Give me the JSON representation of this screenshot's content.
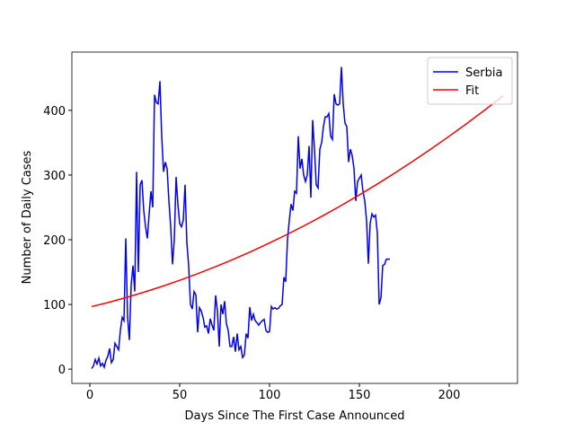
{
  "chart_data": {
    "type": "line",
    "x_label": "Days Since The First Case Announced",
    "y_label": "Number of Daily Cases",
    "xlim": [
      -10,
      238
    ],
    "ylim": [
      -22,
      490
    ],
    "xticks": [
      0,
      50,
      100,
      150,
      200
    ],
    "yticks": [
      0,
      100,
      200,
      300,
      400
    ],
    "legend": "upper right",
    "series": [
      {
        "name": "Serbia",
        "color": "#0000ff",
        "x": [
          1,
          2,
          3,
          4,
          5,
          6,
          7,
          8,
          9,
          10,
          11,
          12,
          13,
          14,
          15,
          16,
          17,
          18,
          19,
          20,
          21,
          22,
          23,
          24,
          25,
          26,
          27,
          28,
          29,
          30,
          31,
          32,
          33,
          34,
          35,
          36,
          37,
          38,
          39,
          40,
          41,
          42,
          43,
          44,
          45,
          46,
          47,
          48,
          49,
          50,
          51,
          52,
          53,
          54,
          55,
          56,
          57,
          58,
          59,
          60,
          61,
          62,
          63,
          64,
          65,
          66,
          67,
          68,
          69,
          70,
          71,
          72,
          73,
          74,
          75,
          76,
          77,
          78,
          79,
          80,
          81,
          82,
          83,
          84,
          85,
          86,
          87,
          88,
          89,
          90,
          91,
          92,
          93,
          94,
          95,
          96,
          97,
          98,
          99,
          100,
          101,
          102,
          103,
          104,
          105,
          106,
          107,
          108,
          109,
          110,
          111,
          112,
          113,
          114,
          115,
          116,
          117,
          118,
          119,
          120,
          121,
          122,
          123,
          124,
          125,
          126,
          127,
          128,
          129,
          130,
          131,
          132,
          133,
          134,
          135,
          136,
          137,
          138,
          139,
          140,
          141,
          142,
          143,
          144,
          145,
          146,
          147,
          148,
          149,
          150,
          151,
          152,
          153,
          154,
          155,
          156,
          157,
          158,
          159,
          160,
          161,
          162,
          163,
          164,
          165,
          166,
          167
        ],
        "values": [
          1,
          5,
          15,
          8,
          17,
          5,
          9,
          3,
          14,
          20,
          32,
          10,
          15,
          40,
          35,
          30,
          60,
          80,
          75,
          202,
          80,
          45,
          130,
          160,
          120,
          305,
          150,
          285,
          292,
          245,
          220,
          202,
          240,
          275,
          250,
          424,
          412,
          410,
          445,
          360,
          305,
          320,
          310,
          260,
          220,
          162,
          200,
          297,
          255,
          225,
          220,
          230,
          285,
          195,
          160,
          100,
          93,
          120,
          115,
          57,
          95,
          90,
          80,
          65,
          67,
          55,
          78,
          68,
          60,
          114,
          90,
          35,
          100,
          85,
          105,
          70,
          60,
          35,
          35,
          50,
          27,
          55,
          30,
          35,
          18,
          22,
          55,
          48,
          96,
          75,
          85,
          75,
          72,
          68,
          72,
          75,
          77,
          60,
          57,
          58,
          97,
          93,
          95,
          93,
          94,
          98,
          100,
          142,
          135,
          200,
          230,
          255,
          245,
          275,
          272,
          360,
          310,
          325,
          300,
          290,
          300,
          345,
          265,
          385,
          340,
          285,
          280,
          340,
          350,
          375,
          390,
          390,
          395,
          360,
          355,
          425,
          410,
          408,
          410,
          467,
          410,
          380,
          375,
          320,
          340,
          330,
          310,
          260,
          290,
          295,
          300,
          275,
          260,
          230,
          163,
          225,
          240,
          235,
          238,
          210,
          100,
          110,
          160,
          162,
          170,
          170,
          170
        ]
      },
      {
        "name": "Fit",
        "color": "#ff0000",
        "x": [
          1,
          10,
          20,
          30,
          40,
          50,
          60,
          70,
          80,
          90,
          100,
          110,
          120,
          130,
          140,
          150,
          160,
          170,
          180,
          190,
          200,
          210,
          220,
          230
        ],
        "values": [
          96.7,
          102.9,
          110.5,
          118.8,
          127.7,
          137.3,
          147.5,
          158.4,
          169.9,
          182.1,
          195,
          208.5,
          222.7,
          237.6,
          253.1,
          269.3,
          286.1,
          303.6,
          321.7,
          340.5,
          360,
          380.1,
          400.9,
          422.4
        ]
      }
    ]
  }
}
